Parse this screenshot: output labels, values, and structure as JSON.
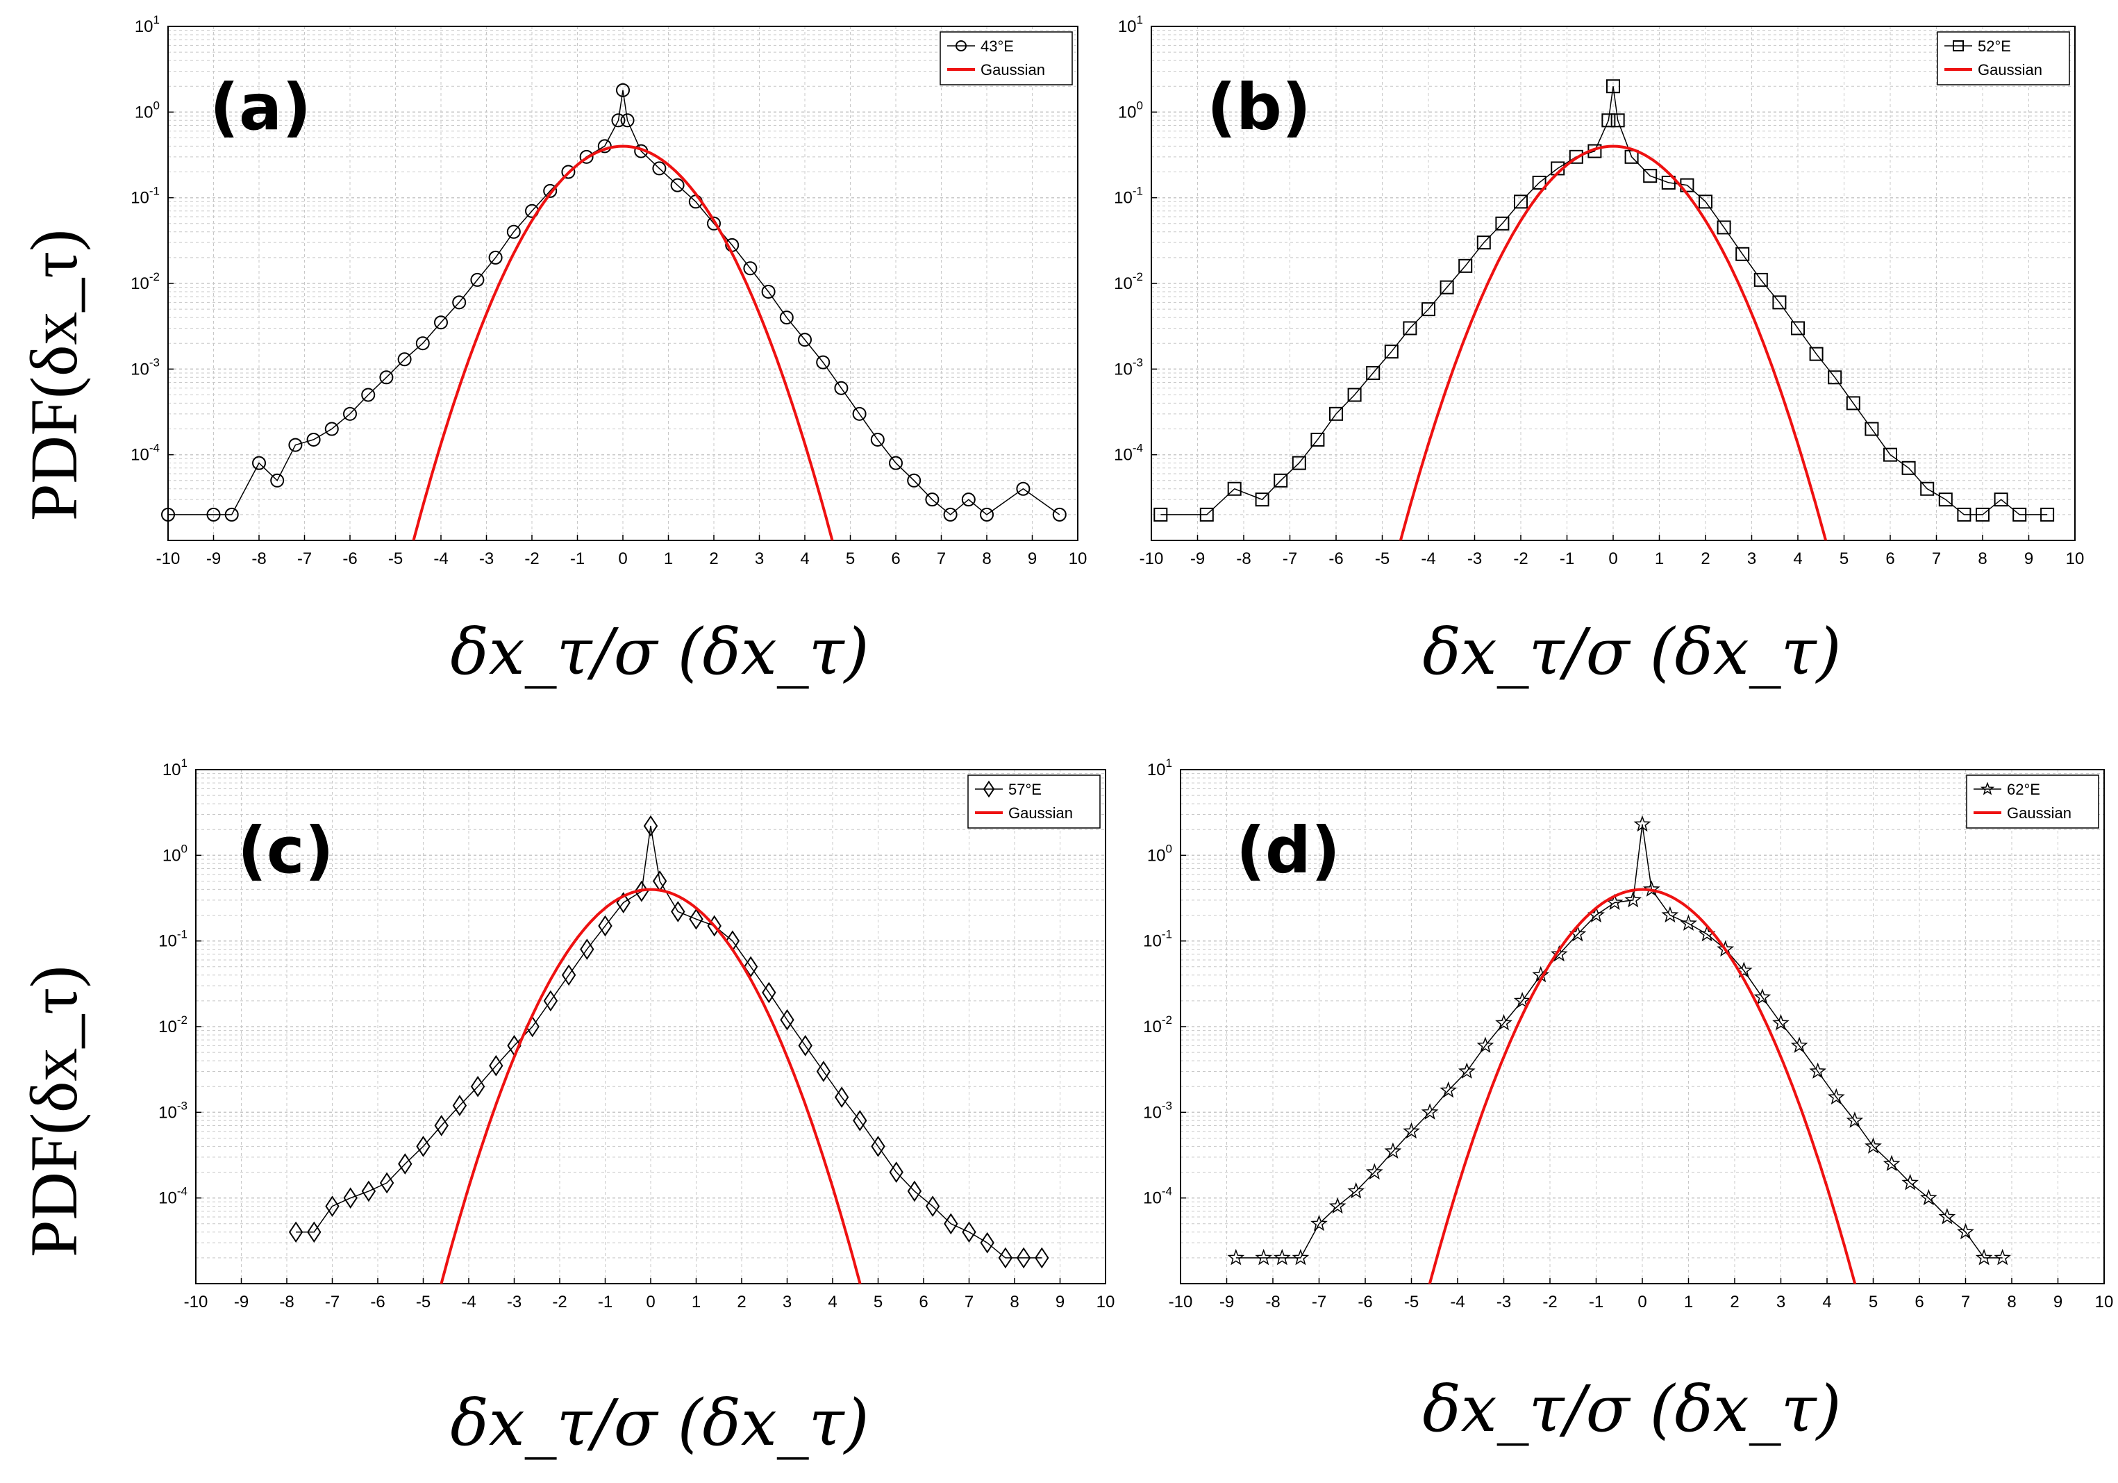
{
  "figure": {
    "ylabel": "PDF(δx_τ)",
    "xlabel": "δx_τ/σ (δx_τ)",
    "colors": {
      "data": "#000000",
      "gaussian": "#ee1111",
      "grid": "#c8c8c8"
    }
  },
  "chart_data": [
    {
      "type": "scatter",
      "panel": "(a)",
      "title": "",
      "xlabel": "δx_τ/σ (δx_τ)",
      "ylabel": "PDF(δx_τ)",
      "xlim": [
        -10,
        10
      ],
      "ylim": [
        1e-05,
        10
      ],
      "yscale": "log",
      "grid": true,
      "legend_position": "top-right",
      "x_ticks": [
        "-10",
        "-9",
        "-8",
        "-7",
        "-6",
        "-5",
        "-4",
        "-3",
        "-2",
        "-1",
        "0",
        "1",
        "2",
        "3",
        "4",
        "5",
        "6",
        "7",
        "8",
        "9",
        "10"
      ],
      "y_ticks": [
        {
          "base": "10",
          "exp": "1"
        },
        {
          "base": "10",
          "exp": "0"
        },
        {
          "base": "10",
          "exp": "-1"
        },
        {
          "base": "10",
          "exp": "-2"
        },
        {
          "base": "10",
          "exp": "-3"
        },
        {
          "base": "10",
          "exp": "-4"
        }
      ],
      "marker": "circle",
      "series": [
        {
          "name": "43°E",
          "marker": "circle",
          "x": [
            -10,
            -9,
            -8.6,
            -8,
            -7.6,
            -7.2,
            -6.8,
            -6.4,
            -6,
            -5.6,
            -5.2,
            -4.8,
            -4.4,
            -4,
            -3.6,
            -3.2,
            -2.8,
            -2.4,
            -2,
            -1.6,
            -1.2,
            -0.8,
            -0.4,
            -0.1,
            0,
            0.1,
            0.4,
            0.8,
            1.2,
            1.6,
            2,
            2.4,
            2.8,
            3.2,
            3.6,
            4,
            4.4,
            4.8,
            5.2,
            5.6,
            6,
            6.4,
            6.8,
            7.2,
            7.6,
            8,
            8.8,
            9.6
          ],
          "values": [
            2e-05,
            2e-05,
            2e-05,
            8e-05,
            5e-05,
            0.00013,
            0.00015,
            0.0002,
            0.0003,
            0.0005,
            0.0008,
            0.0013,
            0.002,
            0.0035,
            0.006,
            0.011,
            0.02,
            0.04,
            0.07,
            0.12,
            0.2,
            0.3,
            0.4,
            0.8,
            1.8,
            0.8,
            0.35,
            0.22,
            0.14,
            0.09,
            0.05,
            0.028,
            0.015,
            0.008,
            0.004,
            0.0022,
            0.0012,
            0.0006,
            0.0003,
            0.00015,
            8e-05,
            5e-05,
            3e-05,
            2e-05,
            3e-05,
            2e-05,
            4e-05,
            2e-05
          ]
        },
        {
          "name": "Gaussian",
          "type": "line",
          "formula": "exp(-x^2/2)/sqrt(2*pi)",
          "x_range": [
            -4.7,
            4.7
          ]
        }
      ]
    },
    {
      "type": "scatter",
      "panel": "(b)",
      "title": "",
      "xlabel": "δx_τ/σ (δx_τ)",
      "ylabel": "",
      "xlim": [
        -10,
        10
      ],
      "ylim": [
        1e-05,
        10
      ],
      "yscale": "log",
      "grid": true,
      "legend_position": "top-right",
      "x_ticks": [
        "-10",
        "-9",
        "-8",
        "-7",
        "-6",
        "-5",
        "-4",
        "-3",
        "-2",
        "-1",
        "0",
        "1",
        "2",
        "3",
        "4",
        "5",
        "6",
        "7",
        "8",
        "9",
        "10"
      ],
      "y_ticks": [
        {
          "base": "10",
          "exp": "1"
        },
        {
          "base": "10",
          "exp": "0"
        },
        {
          "base": "10",
          "exp": "-1"
        },
        {
          "base": "10",
          "exp": "-2"
        },
        {
          "base": "10",
          "exp": "-3"
        },
        {
          "base": "10",
          "exp": "-4"
        }
      ],
      "marker": "square",
      "series": [
        {
          "name": "52°E",
          "marker": "square",
          "x": [
            -9.8,
            -8.8,
            -8.2,
            -7.6,
            -7.2,
            -6.8,
            -6.4,
            -6,
            -5.6,
            -5.2,
            -4.8,
            -4.4,
            -4,
            -3.6,
            -3.2,
            -2.8,
            -2.4,
            -2,
            -1.6,
            -1.2,
            -0.8,
            -0.4,
            -0.1,
            0,
            0.1,
            0.4,
            0.8,
            1.2,
            1.6,
            2,
            2.4,
            2.8,
            3.2,
            3.6,
            4,
            4.4,
            4.8,
            5.2,
            5.6,
            6,
            6.4,
            6.8,
            7.2,
            7.6,
            8,
            8.4,
            8.8,
            9.4
          ],
          "values": [
            2e-05,
            2e-05,
            4e-05,
            3e-05,
            5e-05,
            8e-05,
            0.00015,
            0.0003,
            0.0005,
            0.0009,
            0.0016,
            0.003,
            0.005,
            0.009,
            0.016,
            0.03,
            0.05,
            0.09,
            0.15,
            0.22,
            0.3,
            0.35,
            0.8,
            2,
            0.8,
            0.3,
            0.18,
            0.15,
            0.14,
            0.09,
            0.045,
            0.022,
            0.011,
            0.006,
            0.003,
            0.0015,
            0.0008,
            0.0004,
            0.0002,
            0.0001,
            7e-05,
            4e-05,
            3e-05,
            2e-05,
            2e-05,
            3e-05,
            2e-05,
            2e-05
          ]
        },
        {
          "name": "Gaussian",
          "type": "line",
          "formula": "exp(-x^2/2)/sqrt(2*pi)",
          "x_range": [
            -4.7,
            4.7
          ]
        }
      ]
    },
    {
      "type": "scatter",
      "panel": "(c)",
      "title": "",
      "xlabel": "δx_τ/σ (δx_τ)",
      "ylabel": "PDF(δx_τ)",
      "xlim": [
        -10,
        10
      ],
      "ylim": [
        1e-05,
        10
      ],
      "yscale": "log",
      "grid": true,
      "legend_position": "top-right",
      "x_ticks": [
        "-10",
        "-9",
        "-8",
        "-7",
        "-6",
        "-5",
        "-4",
        "-3",
        "-2",
        "-1",
        "0",
        "1",
        "2",
        "3",
        "4",
        "5",
        "6",
        "7",
        "8",
        "9",
        "10"
      ],
      "y_ticks": [
        {
          "base": "10",
          "exp": "1"
        },
        {
          "base": "10",
          "exp": "0"
        },
        {
          "base": "10",
          "exp": "-1"
        },
        {
          "base": "10",
          "exp": "-2"
        },
        {
          "base": "10",
          "exp": "-3"
        },
        {
          "base": "10",
          "exp": "-4"
        }
      ],
      "marker": "diamond",
      "series": [
        {
          "name": "57°E",
          "marker": "diamond",
          "x": [
            -7.8,
            -7.4,
            -7,
            -6.6,
            -6.2,
            -5.8,
            -5.4,
            -5,
            -4.6,
            -4.2,
            -3.8,
            -3.4,
            -3,
            -2.6,
            -2.2,
            -1.8,
            -1.4,
            -1,
            -0.6,
            -0.2,
            0,
            0.2,
            0.6,
            1,
            1.4,
            1.8,
            2.2,
            2.6,
            3,
            3.4,
            3.8,
            4.2,
            4.6,
            5,
            5.4,
            5.8,
            6.2,
            6.6,
            7,
            7.4,
            7.8,
            8.2,
            8.6
          ],
          "values": [
            4e-05,
            4e-05,
            8e-05,
            0.0001,
            0.00012,
            0.00015,
            0.00025,
            0.0004,
            0.0007,
            0.0012,
            0.002,
            0.0035,
            0.006,
            0.01,
            0.02,
            0.04,
            0.08,
            0.15,
            0.28,
            0.38,
            2.2,
            0.5,
            0.22,
            0.18,
            0.15,
            0.1,
            0.05,
            0.025,
            0.012,
            0.006,
            0.003,
            0.0015,
            0.0008,
            0.0004,
            0.0002,
            0.00012,
            8e-05,
            5e-05,
            4e-05,
            3e-05,
            2e-05,
            2e-05,
            2e-05
          ]
        },
        {
          "name": "Gaussian",
          "type": "line",
          "formula": "exp(-x^2/2)/sqrt(2*pi)",
          "x_range": [
            -4.7,
            4.7
          ]
        }
      ]
    },
    {
      "type": "scatter",
      "panel": "(d)",
      "title": "",
      "xlabel": "δx_τ/σ (δx_τ)",
      "ylabel": "",
      "xlim": [
        -10,
        10
      ],
      "ylim": [
        1e-05,
        10
      ],
      "yscale": "log",
      "grid": true,
      "legend_position": "top-right",
      "x_ticks": [
        "-10",
        "-9",
        "-8",
        "-7",
        "-6",
        "-5",
        "-4",
        "-3",
        "-2",
        "-1",
        "0",
        "1",
        "2",
        "3",
        "4",
        "5",
        "6",
        "7",
        "8",
        "9",
        "10"
      ],
      "y_ticks": [
        {
          "base": "10",
          "exp": "1"
        },
        {
          "base": "10",
          "exp": "0"
        },
        {
          "base": "10",
          "exp": "-1"
        },
        {
          "base": "10",
          "exp": "-2"
        },
        {
          "base": "10",
          "exp": "-3"
        },
        {
          "base": "10",
          "exp": "-4"
        }
      ],
      "marker": "star",
      "series": [
        {
          "name": "62°E",
          "marker": "star",
          "x": [
            -8.8,
            -8.2,
            -7.8,
            -7.4,
            -7,
            -6.6,
            -6.2,
            -5.8,
            -5.4,
            -5,
            -4.6,
            -4.2,
            -3.8,
            -3.4,
            -3,
            -2.6,
            -2.2,
            -1.8,
            -1.4,
            -1,
            -0.6,
            -0.2,
            0,
            0.2,
            0.6,
            1,
            1.4,
            1.8,
            2.2,
            2.6,
            3,
            3.4,
            3.8,
            4.2,
            4.6,
            5,
            5.4,
            5.8,
            6.2,
            6.6,
            7,
            7.4,
            7.8
          ],
          "values": [
            2e-05,
            2e-05,
            2e-05,
            2e-05,
            5e-05,
            8e-05,
            0.00012,
            0.0002,
            0.00035,
            0.0006,
            0.001,
            0.0018,
            0.003,
            0.006,
            0.011,
            0.02,
            0.04,
            0.07,
            0.12,
            0.2,
            0.28,
            0.3,
            2.3,
            0.4,
            0.2,
            0.16,
            0.12,
            0.08,
            0.045,
            0.022,
            0.011,
            0.006,
            0.003,
            0.0015,
            0.0008,
            0.0004,
            0.00025,
            0.00015,
            0.0001,
            6e-05,
            4e-05,
            2e-05,
            2e-05
          ]
        },
        {
          "name": "Gaussian",
          "type": "line",
          "formula": "exp(-x^2/2)/sqrt(2*pi)",
          "x_range": [
            -4.7,
            4.7
          ]
        }
      ]
    }
  ]
}
